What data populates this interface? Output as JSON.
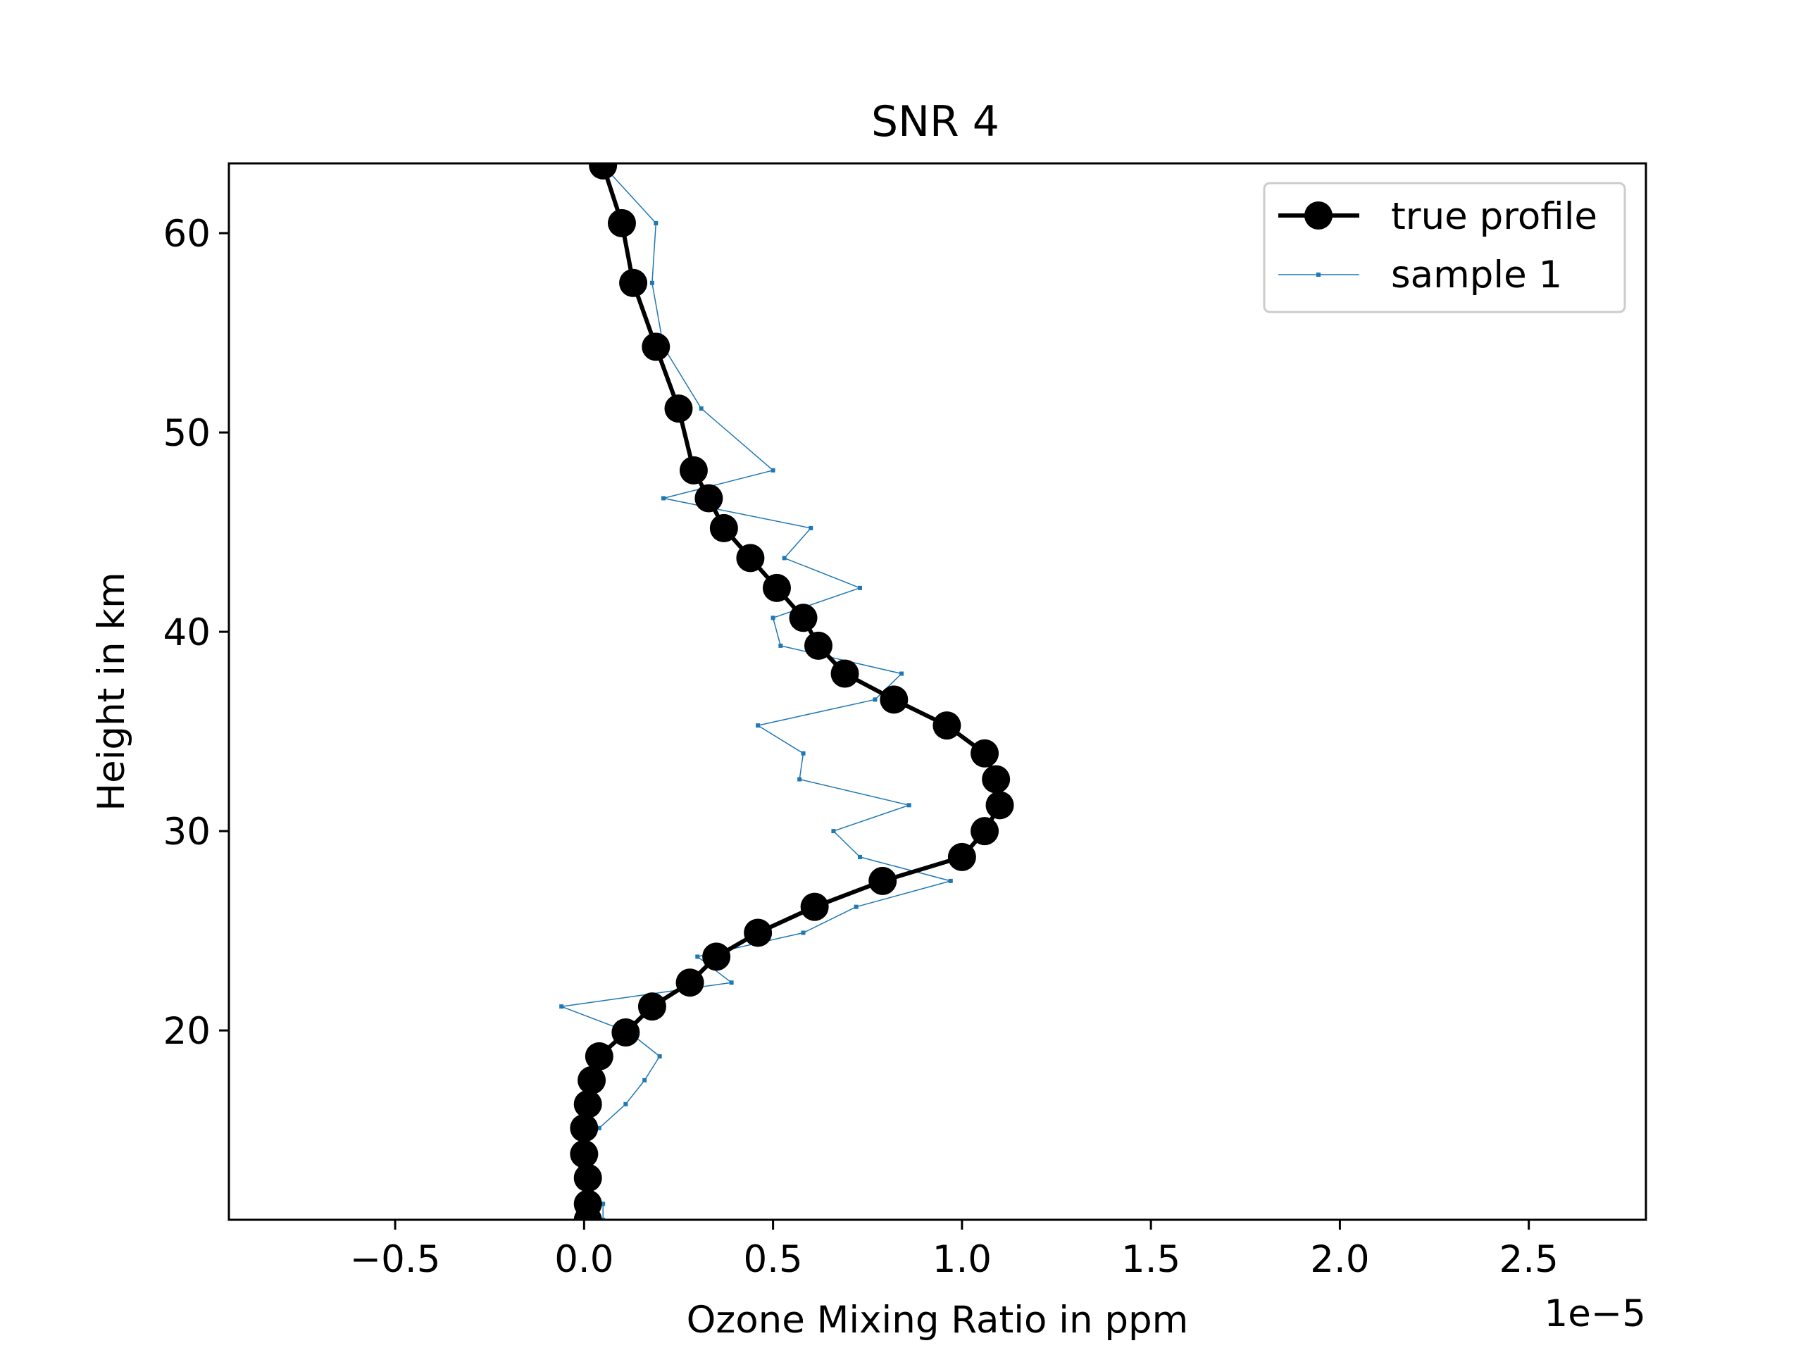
{
  "chart_data": {
    "type": "line",
    "title": "SNR 4",
    "xlabel": "Ozone Mixing Ratio in ppm",
    "ylabel": "Height in km",
    "x_offset_label": "1e−5",
    "xlim": [
      -0.94,
      2.81
    ],
    "ylim": [
      10.5,
      63.5
    ],
    "x_scale_multiplier": 1e-05,
    "x_ticks": [
      -0.5,
      0.0,
      0.5,
      1.0,
      1.5,
      2.0,
      2.5
    ],
    "x_tick_labels": [
      "−0.5",
      "0.0",
      "0.5",
      "1.0",
      "1.5",
      "2.0",
      "2.5"
    ],
    "y_ticks": [
      20,
      30,
      40,
      50,
      60
    ],
    "y_tick_labels": [
      "20",
      "30",
      "40",
      "50",
      "60"
    ],
    "grid": false,
    "legend_position": "top-right",
    "series": [
      {
        "name": "true profile",
        "color": "#000000",
        "marker": "circle-large",
        "points": [
          [
            0.01,
            10.5
          ],
          [
            0.01,
            11.3
          ],
          [
            0.01,
            12.6
          ],
          [
            0.0,
            13.8
          ],
          [
            0.0,
            15.1
          ],
          [
            0.01,
            16.3
          ],
          [
            0.02,
            17.5
          ],
          [
            0.04,
            18.7
          ],
          [
            0.11,
            19.9
          ],
          [
            0.18,
            21.2
          ],
          [
            0.28,
            22.4
          ],
          [
            0.35,
            23.7
          ],
          [
            0.46,
            24.9
          ],
          [
            0.61,
            26.2
          ],
          [
            0.79,
            27.5
          ],
          [
            1.0,
            28.7
          ],
          [
            1.06,
            30.0
          ],
          [
            1.1,
            31.3
          ],
          [
            1.09,
            32.6
          ],
          [
            1.06,
            33.9
          ],
          [
            0.96,
            35.3
          ],
          [
            0.82,
            36.6
          ],
          [
            0.69,
            37.9
          ],
          [
            0.62,
            39.3
          ],
          [
            0.58,
            40.7
          ],
          [
            0.51,
            42.2
          ],
          [
            0.44,
            43.7
          ],
          [
            0.37,
            45.2
          ],
          [
            0.33,
            46.7
          ],
          [
            0.29,
            48.1
          ],
          [
            0.25,
            51.2
          ],
          [
            0.19,
            54.3
          ],
          [
            0.13,
            57.5
          ],
          [
            0.1,
            60.5
          ],
          [
            0.05,
            63.4
          ]
        ]
      },
      {
        "name": "sample 1",
        "color": "#1f77b4",
        "marker": "point-small",
        "points": [
          [
            0.05,
            10.5
          ],
          [
            0.05,
            11.3
          ],
          [
            -0.01,
            12.6
          ],
          [
            -0.02,
            13.8
          ],
          [
            0.04,
            15.1
          ],
          [
            0.11,
            16.3
          ],
          [
            0.16,
            17.5
          ],
          [
            0.2,
            18.7
          ],
          [
            0.12,
            19.9
          ],
          [
            -0.06,
            21.2
          ],
          [
            0.39,
            22.4
          ],
          [
            0.3,
            23.7
          ],
          [
            0.58,
            24.9
          ],
          [
            0.72,
            26.2
          ],
          [
            0.97,
            27.5
          ],
          [
            0.73,
            28.7
          ],
          [
            0.66,
            30.0
          ],
          [
            0.86,
            31.3
          ],
          [
            0.57,
            32.6
          ],
          [
            0.58,
            33.9
          ],
          [
            0.46,
            35.3
          ],
          [
            0.77,
            36.6
          ],
          [
            0.84,
            37.9
          ],
          [
            0.52,
            39.3
          ],
          [
            0.5,
            40.7
          ],
          [
            0.73,
            42.2
          ],
          [
            0.53,
            43.7
          ],
          [
            0.6,
            45.2
          ],
          [
            0.21,
            46.7
          ],
          [
            0.5,
            48.1
          ],
          [
            0.31,
            51.2
          ],
          [
            0.21,
            54.3
          ],
          [
            0.18,
            57.5
          ],
          [
            0.19,
            60.5
          ],
          [
            0.05,
            63.4
          ]
        ]
      }
    ]
  }
}
